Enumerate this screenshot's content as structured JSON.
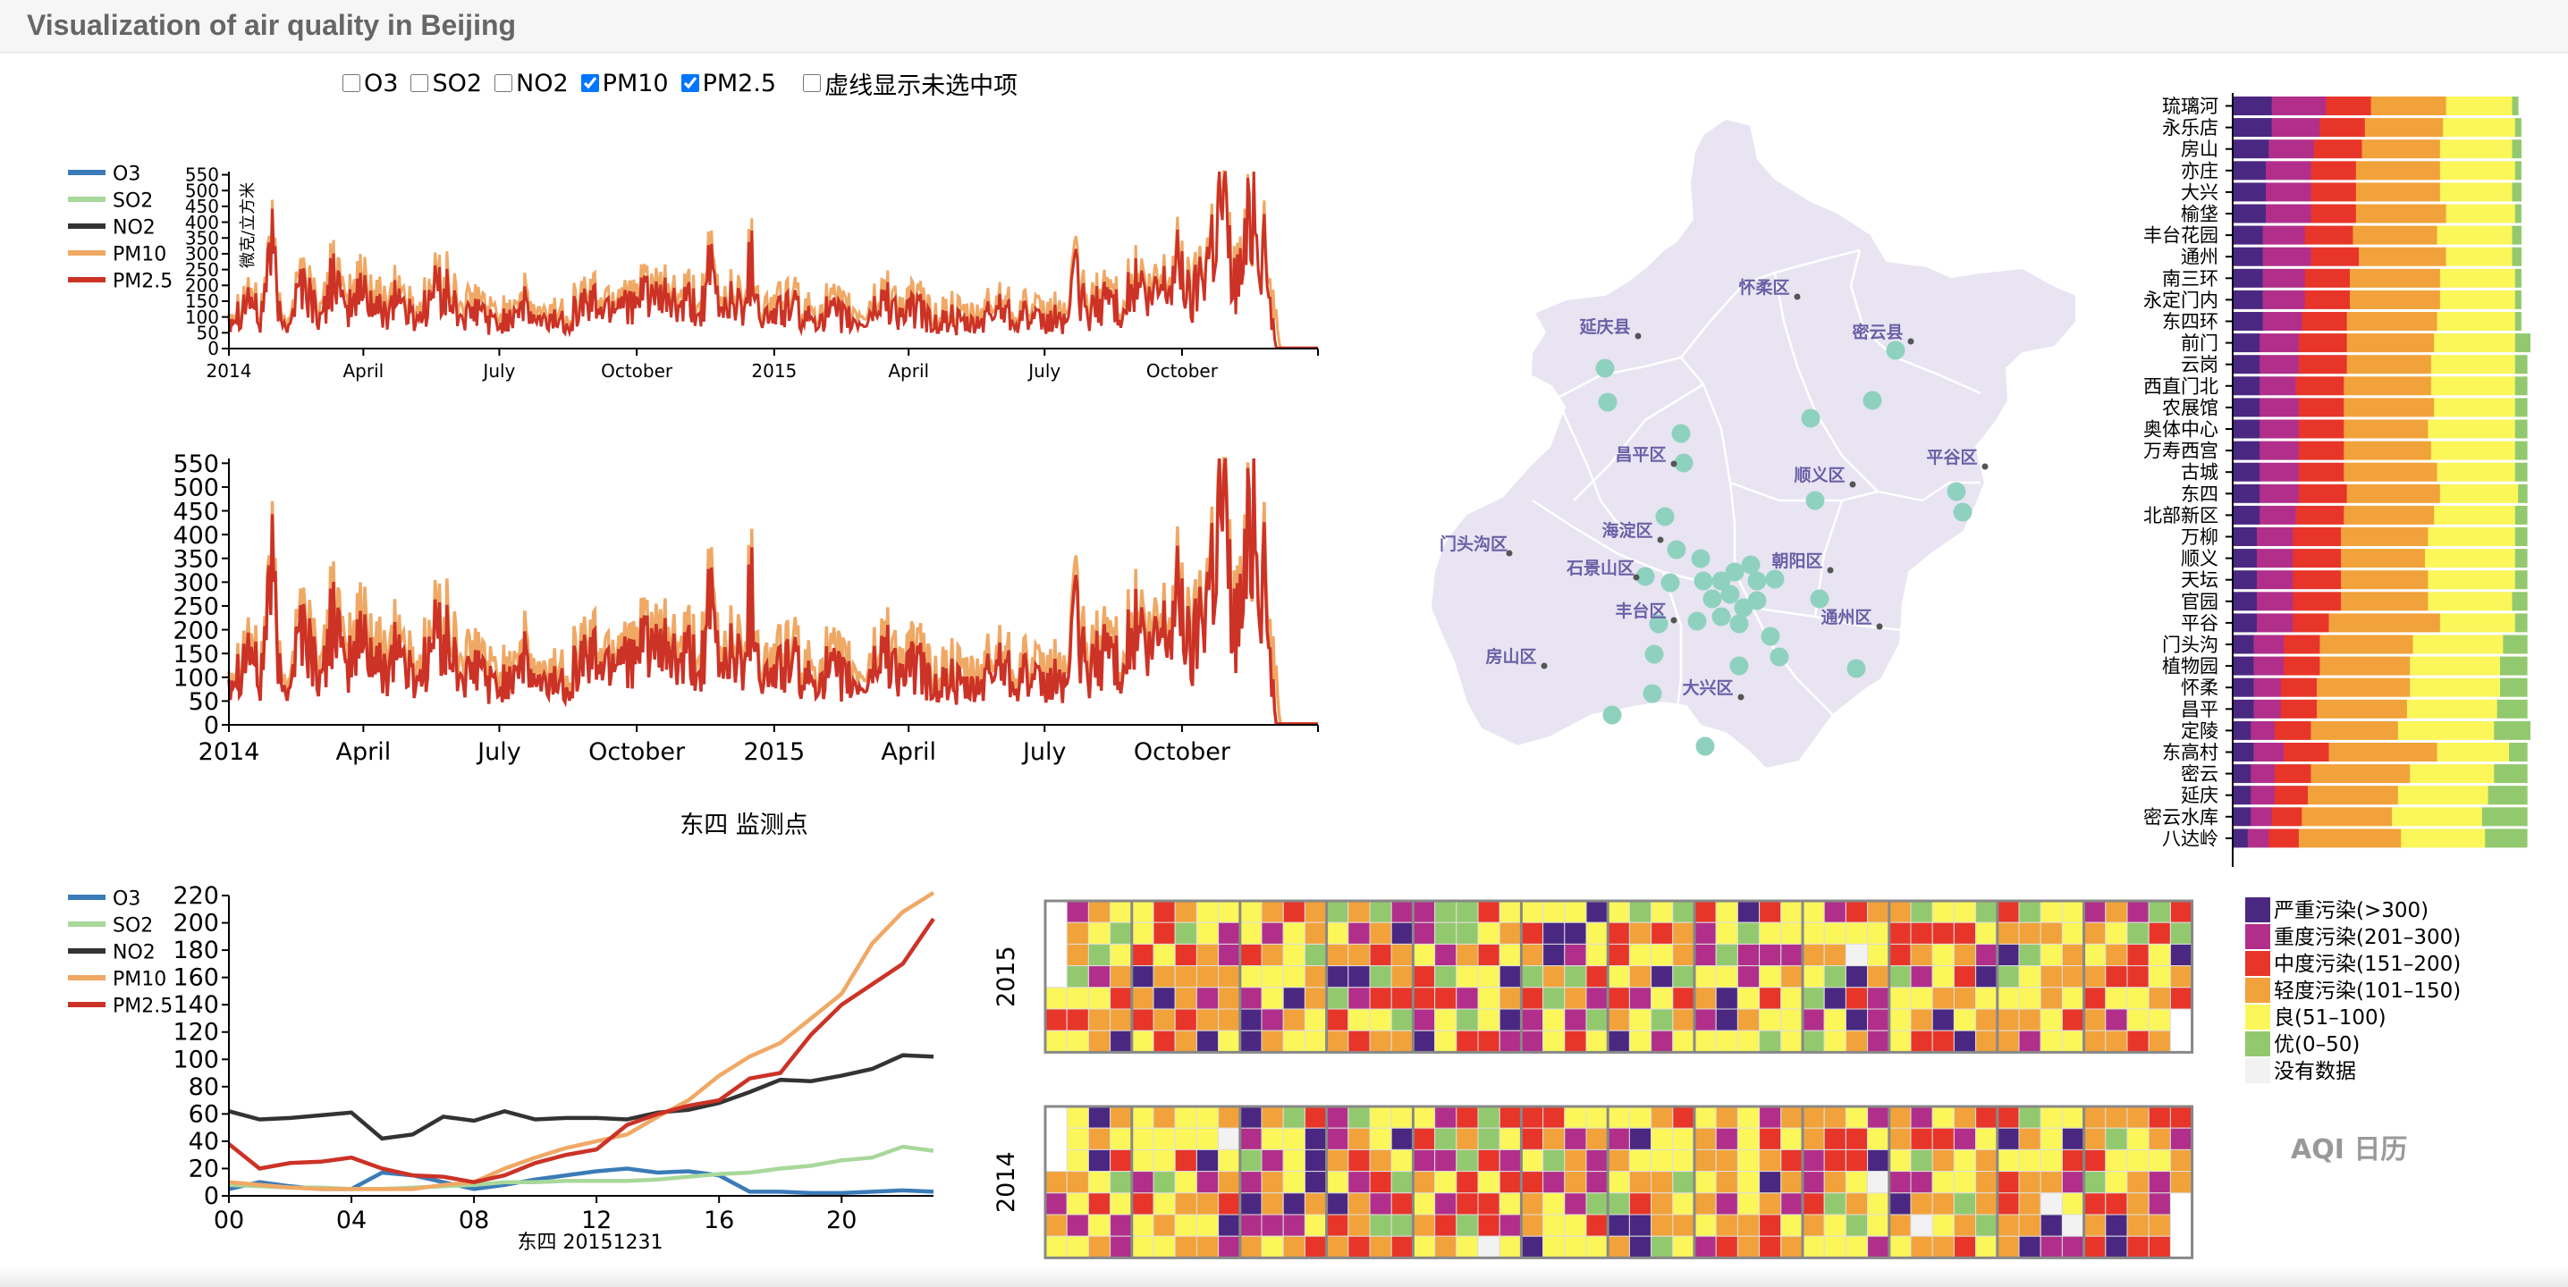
{
  "title": "Visualization of air quality in Beijing",
  "controls": [
    {
      "label": "O3",
      "checked": false
    },
    {
      "label": "SO2",
      "checked": false
    },
    {
      "label": "NO2",
      "checked": false
    },
    {
      "label": "PM10",
      "checked": true
    },
    {
      "label": "PM2.5",
      "checked": true
    }
  ],
  "dashed_option": {
    "label": "虚线显示未选中项",
    "checked": false
  },
  "series_colors": {
    "O3": "#3b7bb8",
    "SO2": "#a8d89a",
    "NO2": "#333333",
    "PM10": "#f0a865",
    "PM2.5": "#cc3226"
  },
  "station_title": "东四 监测点",
  "calendar_title": "AQI 日历",
  "chart_data": [
    {
      "id": "overview",
      "type": "line",
      "title": "",
      "ylabel": "微克/立方米",
      "legend": [
        "O3",
        "SO2",
        "NO2",
        "PM10",
        "PM2.5"
      ],
      "legend_position": "left",
      "x_range": [
        "2014-01-01",
        "2015-12-31"
      ],
      "x_ticks": [
        "2014",
        "April",
        "July",
        "October",
        "2015",
        "April",
        "July",
        "October"
      ],
      "y_ticks": [
        0,
        50,
        100,
        150,
        200,
        250,
        300,
        350,
        400,
        450,
        500,
        550
      ],
      "ylim": [
        0,
        560
      ],
      "series": [
        {
          "name": "PM10",
          "x_start": "2014-01-01",
          "step_days": 7,
          "values": [
            130,
            150,
            210,
            100,
            380,
            90,
            150,
            260,
            180,
            120,
            320,
            140,
            200,
            250,
            170,
            160,
            230,
            150,
            130,
            180,
            240,
            210,
            150,
            140,
            160,
            120,
            110,
            150,
            180,
            130,
            100,
            130,
            120,
            150,
            180,
            180,
            160,
            190,
            210,
            150,
            240,
            170,
            200,
            150,
            180,
            140,
            280,
            150,
            200,
            160,
            320,
            130,
            150,
            160,
            170,
            120,
            130,
            150,
            140,
            130,
            110,
            120,
            170,
            200,
            140,
            150,
            160,
            120,
            110,
            130,
            110,
            100,
            120,
            150,
            180,
            130,
            150,
            120,
            110,
            130,
            120,
            260,
            140,
            170,
            210,
            160,
            200,
            250,
            170,
            230,
            250,
            330,
            170,
            300,
            400,
            560,
            250,
            300,
            540,
            330
          ]
        },
        {
          "name": "PM2.5",
          "x_start": "2014-01-01",
          "step_days": 7,
          "values": [
            110,
            130,
            180,
            80,
            360,
            70,
            120,
            230,
            150,
            90,
            280,
            110,
            160,
            200,
            130,
            120,
            190,
            120,
            100,
            150,
            210,
            170,
            110,
            100,
            130,
            90,
            80,
            120,
            150,
            100,
            80,
            100,
            90,
            120,
            150,
            150,
            130,
            160,
            180,
            120,
            210,
            140,
            170,
            120,
            150,
            110,
            250,
            120,
            170,
            130,
            290,
            100,
            110,
            130,
            140,
            90,
            100,
            120,
            110,
            100,
            80,
            90,
            140,
            170,
            110,
            120,
            130,
            90,
            80,
            100,
            80,
            70,
            90,
            120,
            150,
            100,
            120,
            90,
            80,
            100,
            90,
            230,
            110,
            140,
            180,
            130,
            170,
            220,
            140,
            200,
            220,
            300,
            140,
            270,
            370,
            520,
            220,
            270,
            560,
            300
          ]
        }
      ]
    },
    {
      "id": "detail",
      "type": "line",
      "title": "",
      "x_range": [
        "2014-01-01",
        "2015-12-31"
      ],
      "x_ticks": [
        "2014",
        "April",
        "July",
        "October",
        "2015",
        "April",
        "July",
        "October"
      ],
      "y_ticks": [
        0,
        50,
        100,
        150,
        200,
        250,
        300,
        350,
        400,
        450,
        500,
        550
      ],
      "ylim": [
        0,
        560
      ],
      "series": [
        {
          "name": "PM10",
          "same_as": "overview"
        },
        {
          "name": "PM2.5",
          "same_as": "overview"
        }
      ]
    },
    {
      "id": "hourly",
      "type": "line",
      "title": "",
      "xlabel": "东四 20151231",
      "legend": [
        "O3",
        "SO2",
        "NO2",
        "PM10",
        "PM2.5"
      ],
      "legend_position": "left",
      "x": [
        0,
        1,
        2,
        3,
        4,
        5,
        6,
        7,
        8,
        9,
        10,
        11,
        12,
        13,
        14,
        15,
        16,
        17,
        18,
        19,
        20,
        21,
        22,
        23
      ],
      "x_ticks": [
        "00",
        "04",
        "08",
        "12",
        "16",
        "20"
      ],
      "y_ticks": [
        0,
        20,
        40,
        60,
        80,
        100,
        120,
        140,
        160,
        180,
        200,
        220
      ],
      "ylim": [
        0,
        220
      ],
      "series": [
        {
          "name": "O3",
          "values": [
            5,
            10,
            7,
            5,
            5,
            17,
            15,
            10,
            5,
            8,
            12,
            15,
            18,
            20,
            17,
            18,
            15,
            3,
            3,
            2,
            2,
            3,
            4,
            3
          ]
        },
        {
          "name": "SO2",
          "values": [
            8,
            7,
            6,
            6,
            5,
            5,
            6,
            7,
            8,
            10,
            10,
            11,
            11,
            11,
            12,
            14,
            16,
            17,
            20,
            22,
            26,
            28,
            36,
            33
          ]
        },
        {
          "name": "NO2",
          "values": [
            62,
            56,
            57,
            59,
            61,
            42,
            45,
            58,
            55,
            62,
            56,
            57,
            57,
            56,
            61,
            63,
            68,
            76,
            85,
            84,
            88,
            93,
            103,
            102
          ]
        },
        {
          "name": "PM10",
          "values": [
            10,
            8,
            6,
            5,
            5,
            5,
            5,
            8,
            10,
            20,
            28,
            35,
            40,
            45,
            58,
            70,
            88,
            102,
            112,
            130,
            148,
            185,
            208,
            222
          ]
        },
        {
          "name": "PM2.5",
          "values": [
            38,
            20,
            24,
            25,
            28,
            20,
            15,
            14,
            10,
            15,
            24,
            30,
            34,
            52,
            60,
            66,
            70,
            86,
            90,
            118,
            140,
            155,
            170,
            203
          ]
        }
      ]
    },
    {
      "id": "district_bars",
      "type": "bar",
      "stacked": true,
      "normalized": true,
      "categories": [
        "琉璃河",
        "永乐店",
        "房山",
        "亦庄",
        "大兴",
        "榆垡",
        "丰台花园",
        "通州",
        "南三环",
        "永定门内",
        "东四环",
        "前门",
        "云岗",
        "西直门北",
        "农展馆",
        "奥体中心",
        "万寿西宫",
        "古城",
        "东四",
        "北部新区",
        "万柳",
        "顺义",
        "天坛",
        "官园",
        "平谷",
        "门头沟",
        "植物园",
        "怀柔",
        "昌平",
        "定陵",
        "东高村",
        "密云",
        "延庆",
        "密云水库",
        "八达岭"
      ],
      "series": [
        {
          "name": "严重污染(>300)",
          "values": [
            0.13,
            0.13,
            0.12,
            0.11,
            0.11,
            0.11,
            0.1,
            0.1,
            0.1,
            0.1,
            0.1,
            0.09,
            0.09,
            0.09,
            0.09,
            0.09,
            0.09,
            0.09,
            0.09,
            0.09,
            0.08,
            0.08,
            0.08,
            0.08,
            0.08,
            0.07,
            0.07,
            0.07,
            0.07,
            0.06,
            0.07,
            0.06,
            0.06,
            0.06,
            0.05
          ]
        },
        {
          "name": "重度污染(201–300)",
          "values": [
            0.18,
            0.16,
            0.15,
            0.15,
            0.15,
            0.15,
            0.14,
            0.16,
            0.14,
            0.14,
            0.13,
            0.13,
            0.13,
            0.12,
            0.13,
            0.13,
            0.13,
            0.13,
            0.13,
            0.12,
            0.12,
            0.12,
            0.12,
            0.12,
            0.12,
            0.1,
            0.1,
            0.09,
            0.09,
            0.08,
            0.1,
            0.08,
            0.08,
            0.07,
            0.07
          ]
        },
        {
          "name": "中度污染(151–200)",
          "values": [
            0.15,
            0.15,
            0.16,
            0.15,
            0.15,
            0.15,
            0.16,
            0.16,
            0.15,
            0.15,
            0.15,
            0.16,
            0.16,
            0.16,
            0.15,
            0.15,
            0.15,
            0.15,
            0.16,
            0.16,
            0.16,
            0.16,
            0.16,
            0.16,
            0.12,
            0.12,
            0.12,
            0.12,
            0.12,
            0.12,
            0.15,
            0.12,
            0.11,
            0.1,
            0.1
          ]
        },
        {
          "name": "轻度污染(101–150)",
          "values": [
            0.25,
            0.26,
            0.26,
            0.28,
            0.28,
            0.3,
            0.28,
            0.29,
            0.3,
            0.3,
            0.3,
            0.29,
            0.28,
            0.29,
            0.3,
            0.28,
            0.29,
            0.31,
            0.31,
            0.3,
            0.29,
            0.28,
            0.29,
            0.29,
            0.37,
            0.31,
            0.3,
            0.31,
            0.3,
            0.29,
            0.36,
            0.33,
            0.3,
            0.3,
            0.34
          ]
        },
        {
          "name": "良(51–100)",
          "values": [
            0.22,
            0.24,
            0.24,
            0.25,
            0.24,
            0.23,
            0.25,
            0.22,
            0.25,
            0.25,
            0.26,
            0.27,
            0.28,
            0.28,
            0.27,
            0.29,
            0.28,
            0.26,
            0.26,
            0.27,
            0.29,
            0.3,
            0.29,
            0.28,
            0.25,
            0.3,
            0.3,
            0.3,
            0.3,
            0.32,
            0.24,
            0.28,
            0.3,
            0.3,
            0.28
          ]
        },
        {
          "name": "优(0–50)",
          "values": [
            0.02,
            0.02,
            0.03,
            0.02,
            0.03,
            0.02,
            0.03,
            0.03,
            0.02,
            0.02,
            0.02,
            0.05,
            0.04,
            0.04,
            0.04,
            0.04,
            0.04,
            0.04,
            0.03,
            0.04,
            0.04,
            0.04,
            0.04,
            0.05,
            0.04,
            0.08,
            0.09,
            0.09,
            0.1,
            0.12,
            0.06,
            0.11,
            0.13,
            0.15,
            0.14
          ]
        }
      ]
    },
    {
      "id": "aqi_calendar",
      "type": "heatmap",
      "years": [
        "2015",
        "2014"
      ],
      "seed": {
        "2015": 7,
        "2014": 3
      },
      "missing_days": {
        "2014": [
          8,
          20,
          38,
          40,
          46,
          47,
          53
        ],
        "2015": [
          37
        ]
      },
      "categories": [
        "严重污染(>300)",
        "重度污染(201–300)",
        "中度污染(151–200)",
        "轻度污染(101–150)",
        "良(51–100)",
        "优(0–50)",
        "没有数据"
      ],
      "category_weights": [
        0.07,
        0.12,
        0.16,
        0.27,
        0.3,
        0.08
      ]
    }
  ],
  "legend_aqi": [
    {
      "label": "严重污染(>300)",
      "color": "#4a2882"
    },
    {
      "label": "重度污染(201–300)",
      "color": "#b12f8a"
    },
    {
      "label": "中度污染(151–200)",
      "color": "#e8352a"
    },
    {
      "label": "轻度污染(101–150)",
      "color": "#f2a23a"
    },
    {
      "label": "良(51–100)",
      "color": "#fbf65a"
    },
    {
      "label": "优(0–50)",
      "color": "#93c96e"
    },
    {
      "label": "没有数据",
      "color": "#f2f2f2"
    }
  ],
  "map": {
    "land_color": "#e8e4f2",
    "border_color": "#ffffff",
    "station_color": "#8fd1bf",
    "district_label_color": "#6b5fa6",
    "districts": [
      "延庆县",
      "怀柔区",
      "密云县",
      "昌平区",
      "顺义区",
      "平谷区",
      "门头沟区",
      "海淀区",
      "石景山区",
      "朝阳区",
      "丰台区",
      "通州区",
      "房山区",
      "大兴区"
    ],
    "station_count": 35
  }
}
